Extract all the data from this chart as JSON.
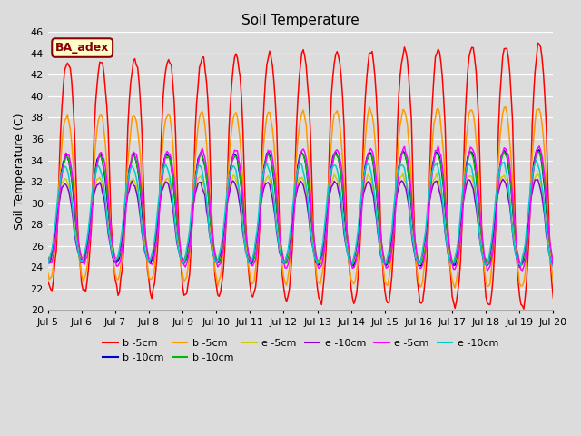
{
  "title": "Soil Temperature",
  "ylabel": "Soil Temperature (C)",
  "xlabel": "",
  "ylim": [
    20,
    46
  ],
  "yticks": [
    20,
    22,
    24,
    26,
    28,
    30,
    32,
    34,
    36,
    38,
    40,
    42,
    44,
    46
  ],
  "background_color": "#dcdcdc",
  "grid_color": "#ffffff",
  "series": [
    {
      "label": "b -5cm",
      "color": "#ff0000"
    },
    {
      "label": "b -10cm",
      "color": "#0000cc"
    },
    {
      "label": "b -5cm",
      "color": "#ff9900"
    },
    {
      "label": "b -10cm",
      "color": "#00bb00"
    },
    {
      "label": "e -5cm",
      "color": "#cccc00"
    },
    {
      "label": "e -10cm",
      "color": "#8800cc"
    },
    {
      "label": "e -5cm",
      "color": "#ff00ff"
    },
    {
      "label": "e -10cm",
      "color": "#00cccc"
    }
  ],
  "xtick_labels": [
    "Jul 5",
    "Jul 6",
    "Jul 7",
    "Jul 8",
    "Jul 9",
    "Jul 10",
    "Jul 11",
    "Jul 12",
    "Jul 13",
    "Jul 14",
    "Jul 15",
    "Jul 16",
    "Jul 17",
    "Jul 18",
    "Jul 19",
    "Jul 20"
  ],
  "annotation_text": "BA_adex",
  "annotation_color": "#8b0000",
  "annotation_bg": "#ffffcc"
}
